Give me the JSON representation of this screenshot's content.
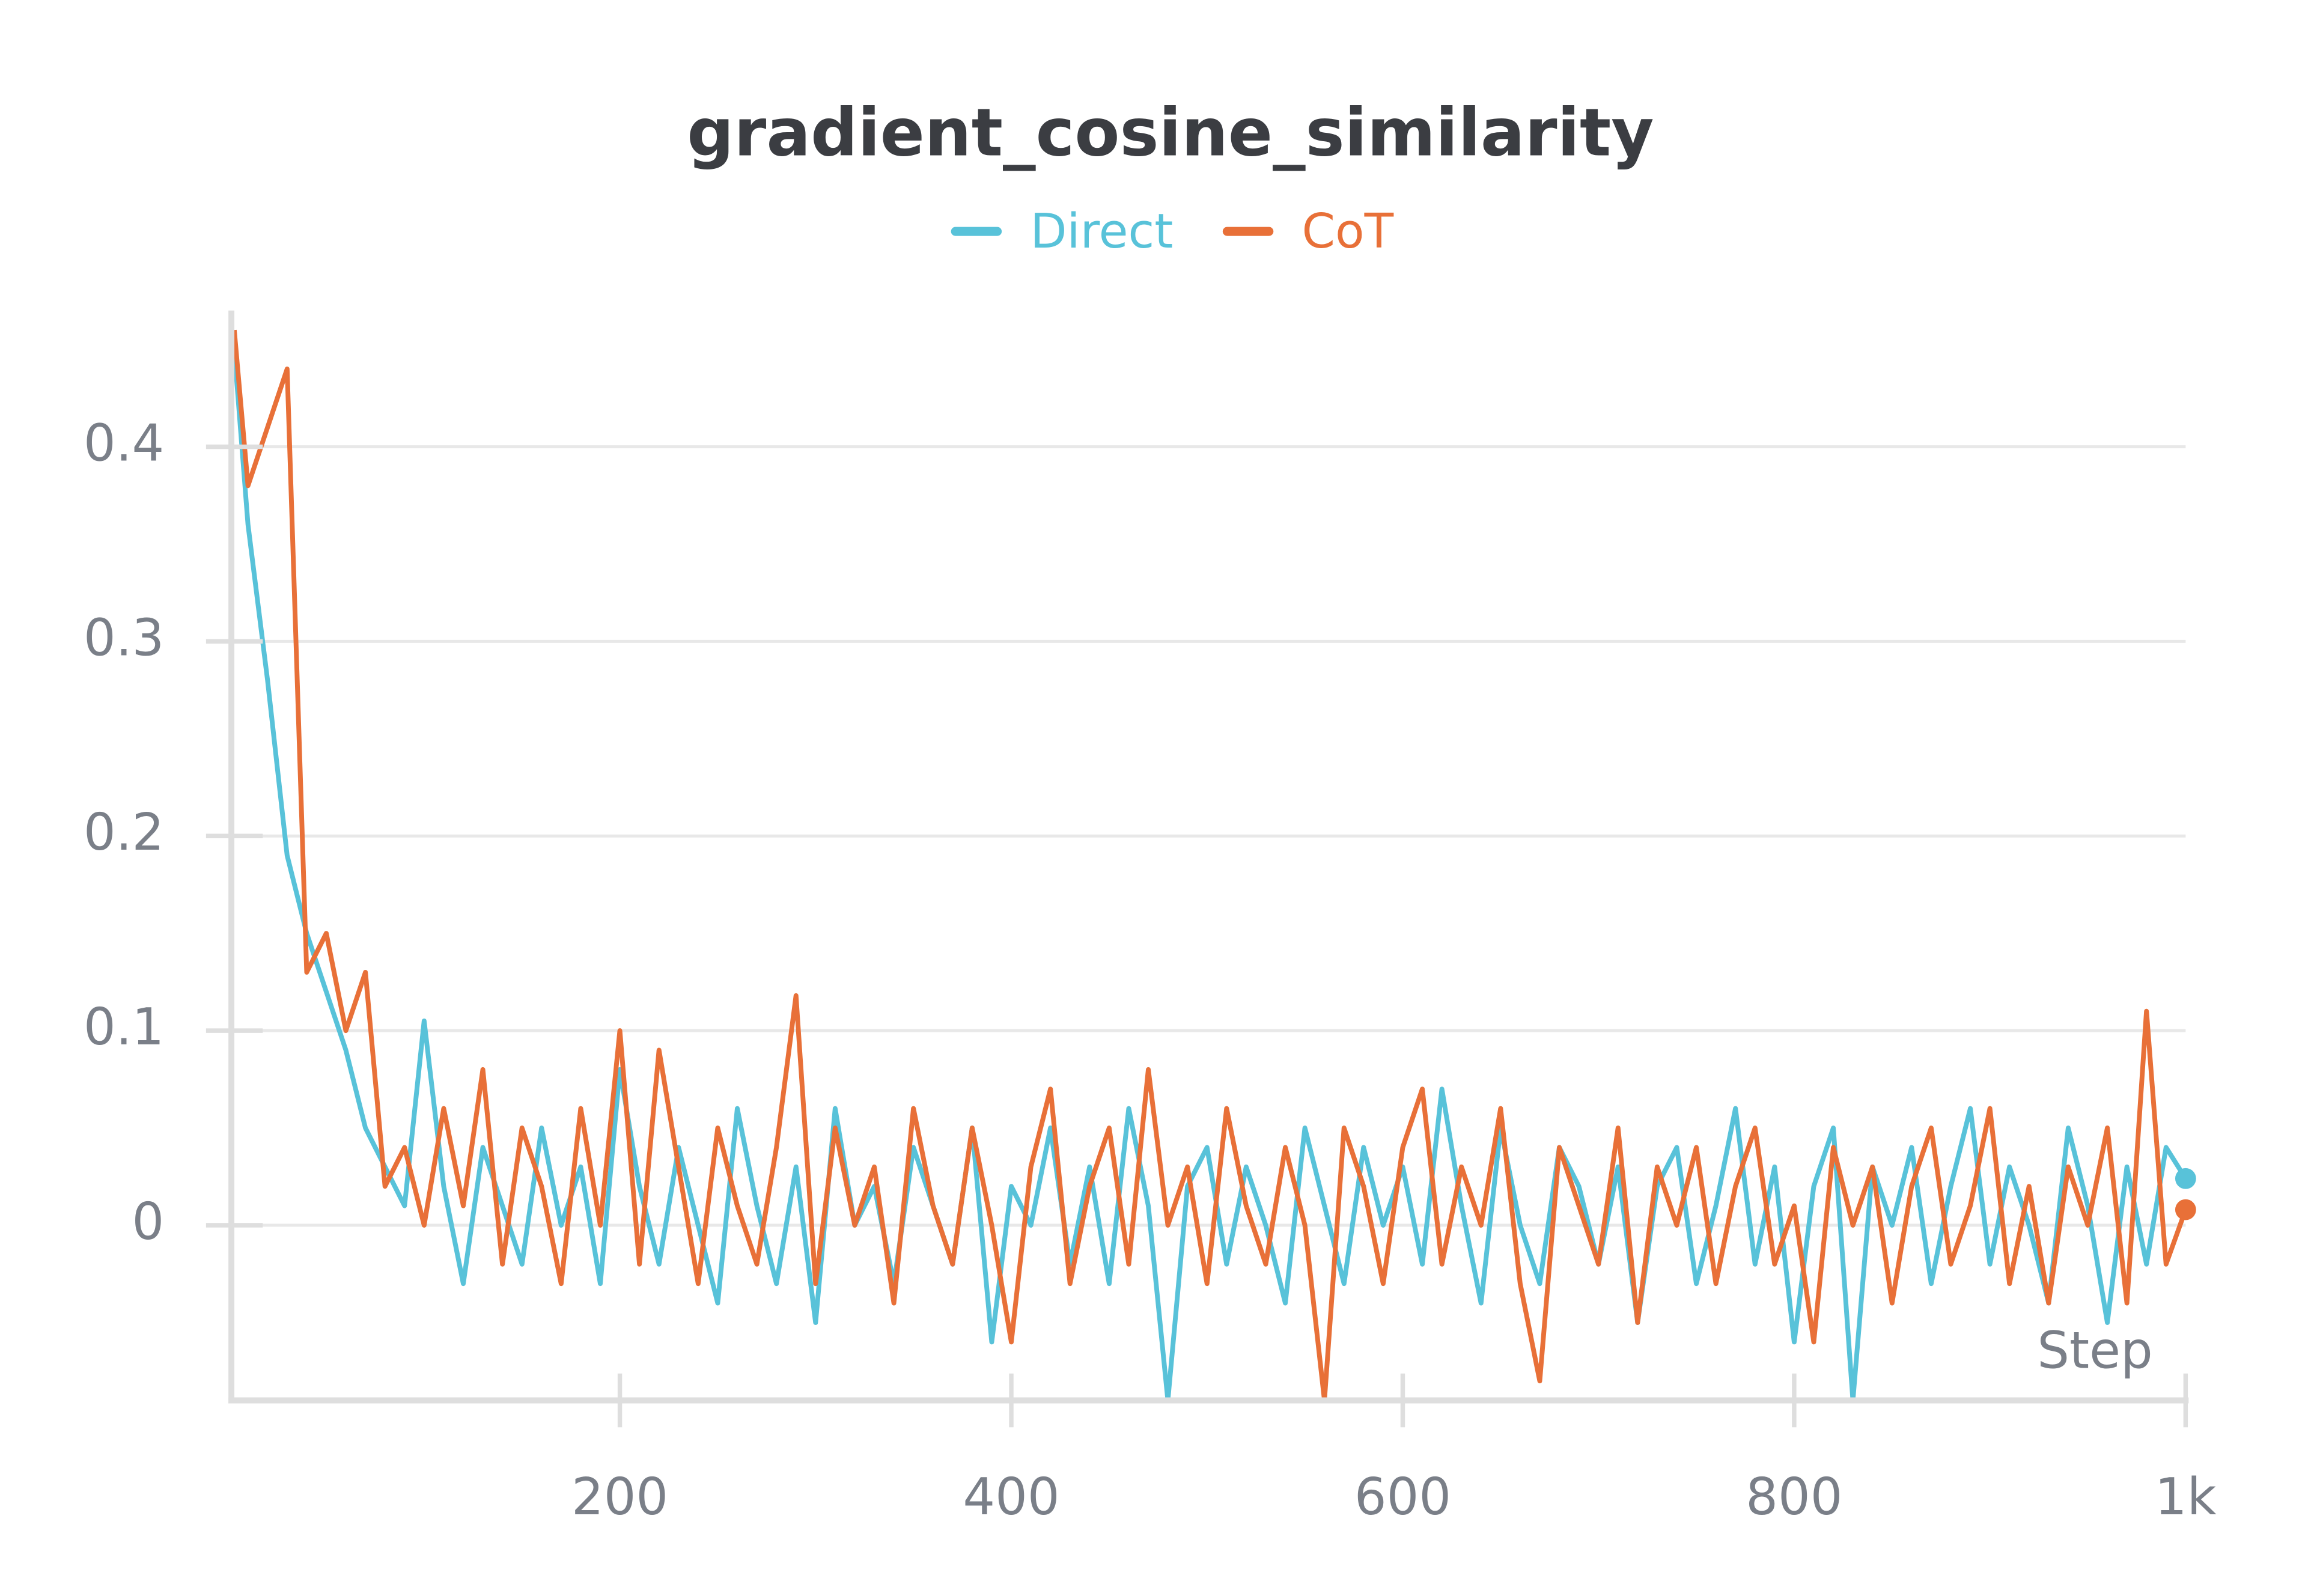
{
  "chart_data": {
    "type": "line",
    "title": "gradient_cosine_similarity",
    "x_label": "Step",
    "x": [
      3,
      10,
      20,
      30,
      40,
      50,
      60,
      70,
      80,
      90,
      100,
      110,
      120,
      130,
      140,
      150,
      160,
      170,
      180,
      190,
      200,
      210,
      220,
      230,
      240,
      250,
      260,
      270,
      280,
      290,
      300,
      310,
      320,
      330,
      340,
      350,
      360,
      370,
      380,
      390,
      400,
      410,
      420,
      430,
      440,
      450,
      460,
      470,
      480,
      490,
      500,
      510,
      520,
      530,
      540,
      550,
      560,
      570,
      580,
      590,
      600,
      610,
      620,
      630,
      640,
      650,
      660,
      670,
      680,
      690,
      700,
      710,
      720,
      730,
      740,
      750,
      760,
      770,
      780,
      790,
      800,
      810,
      820,
      830,
      840,
      850,
      860,
      870,
      880,
      890,
      900,
      910,
      920,
      930,
      940,
      950,
      960,
      970,
      980,
      990,
      1000
    ],
    "series": [
      {
        "name": "Direct",
        "color": "#58c2d9",
        "values": [
          0.45,
          0.36,
          0.28,
          0.19,
          0.15,
          0.12,
          0.09,
          0.05,
          0.03,
          0.01,
          0.105,
          0.02,
          -0.03,
          0.04,
          0.01,
          -0.02,
          0.05,
          0.0,
          0.03,
          -0.03,
          0.08,
          0.02,
          -0.02,
          0.04,
          0.0,
          -0.04,
          0.06,
          0.01,
          -0.03,
          0.03,
          -0.05,
          0.06,
          0.0,
          0.02,
          -0.03,
          0.04,
          0.01,
          -0.02,
          0.05,
          -0.06,
          0.02,
          0.0,
          0.05,
          -0.02,
          0.03,
          -0.03,
          0.06,
          0.01,
          -0.09,
          0.02,
          0.04,
          -0.02,
          0.03,
          0.0,
          -0.04,
          0.05,
          0.01,
          -0.03,
          0.04,
          0.0,
          0.03,
          -0.02,
          0.07,
          0.01,
          -0.04,
          0.05,
          0.0,
          -0.03,
          0.04,
          0.02,
          -0.02,
          0.03,
          -0.05,
          0.02,
          0.04,
          -0.03,
          0.01,
          0.06,
          -0.02,
          0.03,
          -0.06,
          0.02,
          0.05,
          -0.09,
          0.03,
          0.0,
          0.04,
          -0.03,
          0.02,
          0.06,
          -0.02,
          0.03,
          0.0,
          -0.04,
          0.05,
          0.01,
          -0.05,
          0.03,
          -0.02,
          0.04,
          0.024
        ]
      },
      {
        "name": "CoT",
        "color": "#e87038",
        "values": [
          0.46,
          0.38,
          0.41,
          0.44,
          0.13,
          0.15,
          0.1,
          0.13,
          0.02,
          0.04,
          0.0,
          0.06,
          0.01,
          0.08,
          -0.02,
          0.05,
          0.02,
          -0.03,
          0.06,
          0.0,
          0.1,
          -0.02,
          0.09,
          0.03,
          -0.03,
          0.05,
          0.01,
          -0.02,
          0.04,
          0.118,
          -0.03,
          0.05,
          0.0,
          0.03,
          -0.04,
          0.06,
          0.01,
          -0.02,
          0.05,
          0.0,
          -0.06,
          0.03,
          0.07,
          -0.03,
          0.02,
          0.05,
          -0.02,
          0.08,
          0.0,
          0.03,
          -0.03,
          0.06,
          0.01,
          -0.02,
          0.04,
          0.0,
          -0.09,
          0.05,
          0.02,
          -0.03,
          0.04,
          0.07,
          -0.02,
          0.03,
          0.0,
          0.06,
          -0.03,
          -0.08,
          0.04,
          0.01,
          -0.02,
          0.05,
          -0.05,
          0.03,
          0.0,
          0.04,
          -0.03,
          0.02,
          0.05,
          -0.02,
          0.01,
          -0.06,
          0.04,
          0.0,
          0.03,
          -0.04,
          0.02,
          0.05,
          -0.02,
          0.01,
          0.06,
          -0.03,
          0.02,
          -0.04,
          0.03,
          0.0,
          0.05,
          -0.04,
          0.11,
          -0.02,
          0.008
        ]
      }
    ],
    "xlim": [
      0,
      1000
    ],
    "ylim": [
      -0.09,
      0.47
    ],
    "xticks": [
      200,
      400,
      600,
      800,
      {
        "value": 1000,
        "label": "1k"
      }
    ],
    "yticks": [
      0,
      0.1,
      0.2,
      0.3,
      0.4
    ],
    "grid": true
  }
}
